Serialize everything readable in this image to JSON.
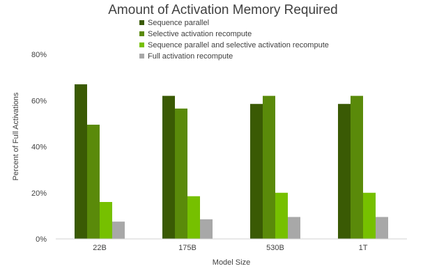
{
  "chart_data": {
    "type": "bar",
    "title": "Amount of Activation Memory Required",
    "xlabel": "Model Size",
    "ylabel": "Percent of Full Activations",
    "ylim": [
      0,
      80
    ],
    "yticks": [
      "0%",
      "20%",
      "40%",
      "60%",
      "80%"
    ],
    "ytick_values": [
      0,
      20,
      40,
      60,
      80
    ],
    "grid": false,
    "legend_position": "top",
    "categories": [
      "22B",
      "175B",
      "530B",
      "1T"
    ],
    "series": [
      {
        "name": "Sequence parallel",
        "color": "#3a5a04",
        "values": [
          67,
          62,
          58.5,
          58.5
        ]
      },
      {
        "name": "Selective activation recompute",
        "color": "#5a8a0a",
        "values": [
          49.5,
          56.5,
          62,
          62
        ]
      },
      {
        "name": "Sequence parallel and selective activation recompute",
        "color": "#76c000",
        "values": [
          16,
          18.5,
          20,
          20
        ]
      },
      {
        "name": "Full activation recompute",
        "color": "#a8a8a8",
        "values": [
          7.5,
          8.5,
          9.5,
          9.5
        ]
      }
    ]
  }
}
